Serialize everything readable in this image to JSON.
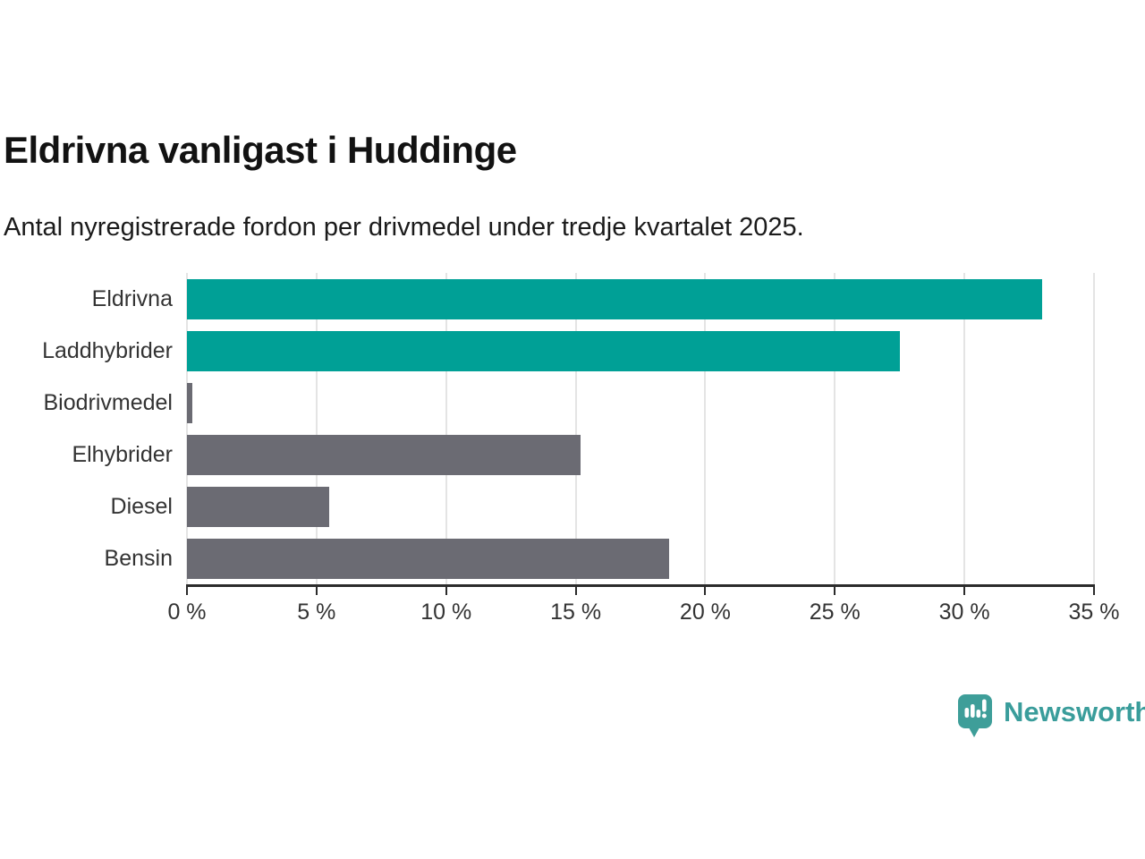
{
  "header": {
    "title": "Eldrivna vanligast i Huddinge",
    "subtitle": "Antal nyregistrerade fordon per drivmedel under tredje kvartalet 2025."
  },
  "chart_data": {
    "type": "bar",
    "orientation": "horizontal",
    "title": "Eldrivna vanligast i Huddinge",
    "subtitle": "Antal nyregistrerade fordon per drivmedel under tredje kvartalet 2025.",
    "categories": [
      "Eldrivna",
      "Laddhybrider",
      "Biodrivmedel",
      "Elhybrider",
      "Diesel",
      "Bensin"
    ],
    "values": [
      33.0,
      27.5,
      0.2,
      15.2,
      5.5,
      18.6
    ],
    "unit": "%",
    "bar_colors": [
      "#00a096",
      "#00a096",
      "#6b6b73",
      "#6b6b73",
      "#6b6b73",
      "#6b6b73"
    ],
    "highlight_color": "#00a096",
    "default_color": "#6b6b73",
    "xlim": [
      0,
      35
    ],
    "x_ticks": [
      0,
      5,
      10,
      15,
      20,
      25,
      30,
      35
    ],
    "x_tick_labels": [
      "0 %",
      "5 %",
      "10 %",
      "15 %",
      "20 %",
      "25 %",
      "30 %",
      "35 %"
    ],
    "grid": "vertical",
    "grid_color": "#e4e4e4",
    "axis_color": "#2b2b2b",
    "label_color": "#333333",
    "legend": "none"
  },
  "branding": {
    "logo_text": "Newsworthy",
    "logo_icon": "newsworthy-speech-bubble-bar-chart-icon",
    "logo_color": "#3e9e99"
  }
}
